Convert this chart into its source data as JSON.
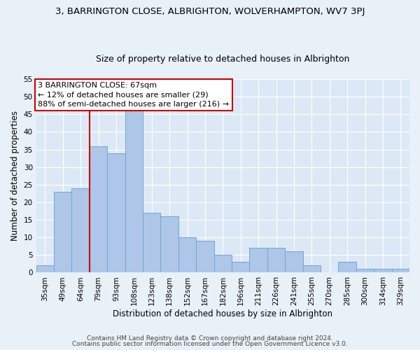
{
  "title": "3, BARRINGTON CLOSE, ALBRIGHTON, WOLVERHAMPTON, WV7 3PJ",
  "subtitle": "Size of property relative to detached houses in Albrighton",
  "xlabel": "Distribution of detached houses by size in Albrighton",
  "ylabel": "Number of detached properties",
  "categories": [
    "35sqm",
    "49sqm",
    "64sqm",
    "79sqm",
    "93sqm",
    "108sqm",
    "123sqm",
    "138sqm",
    "152sqm",
    "167sqm",
    "182sqm",
    "196sqm",
    "211sqm",
    "226sqm",
    "241sqm",
    "255sqm",
    "270sqm",
    "285sqm",
    "300sqm",
    "314sqm",
    "329sqm"
  ],
  "values": [
    2,
    23,
    24,
    36,
    34,
    46,
    17,
    16,
    10,
    9,
    5,
    3,
    7,
    7,
    6,
    2,
    0,
    3,
    1,
    1,
    1
  ],
  "bar_color": "#aec6e8",
  "bar_edge_color": "#6fa8d6",
  "ylim": [
    0,
    55
  ],
  "yticks": [
    0,
    5,
    10,
    15,
    20,
    25,
    30,
    35,
    40,
    45,
    50,
    55
  ],
  "annotation_box_text": "3 BARRINGTON CLOSE: 67sqm\n← 12% of detached houses are smaller (29)\n88% of semi-detached houses are larger (216) →",
  "annotation_box_color": "#ffffff",
  "annotation_box_edge_color": "#cc0000",
  "vline_color": "#cc0000",
  "vline_x_index": 2.5,
  "footer_line1": "Contains HM Land Registry data © Crown copyright and database right 2024.",
  "footer_line2": "Contains public sector information licensed under the Open Government Licence v3.0.",
  "background_color": "#e8f0f8",
  "plot_bg_color": "#dce8f5",
  "title_fontsize": 9.5,
  "subtitle_fontsize": 9,
  "annot_fontsize": 8,
  "tick_fontsize": 7.5,
  "ylabel_fontsize": 8.5,
  "xlabel_fontsize": 8.5,
  "footer_fontsize": 6.5
}
